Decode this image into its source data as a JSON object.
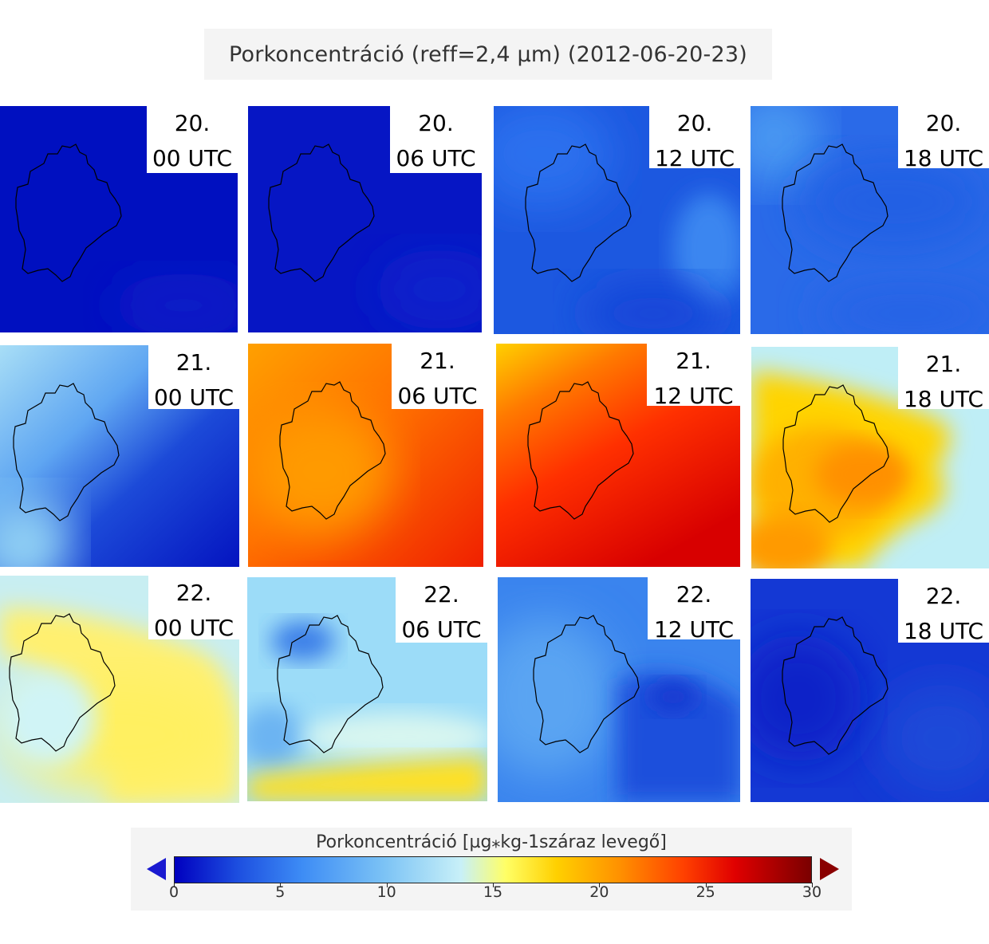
{
  "title": "Porkoncentráció (reff=2,4 µm) (2012-06-20-23)",
  "legend": {
    "title": "Porkoncentráció [µg⁎kg-1száraz levegő]",
    "ticks": [
      "0",
      "5",
      "10",
      "15",
      "20",
      "25",
      "30"
    ],
    "range": [
      0,
      30
    ],
    "extend": "both",
    "colors": {
      "min": "#0000bf",
      "low": "#3d8cf5",
      "mid": "#c8f0f8",
      "yellow": "#ffff66",
      "orange": "#ff9000",
      "red": "#e00000",
      "max": "#7a0000"
    }
  },
  "panels": [
    {
      "day": "20.",
      "time": "00 UTC",
      "colors": {
        "bg": "#0010c0"
      }
    },
    {
      "day": "20.",
      "time": "06 UTC",
      "colors": {
        "bg": "#0616c4"
      }
    },
    {
      "day": "20.",
      "time": "12 UTC",
      "colors": {
        "bg": "#1c58e0"
      }
    },
    {
      "day": "20.",
      "time": "18 UTC",
      "colors": {
        "bg": "#2a6ae8"
      }
    },
    {
      "day": "21.",
      "time": "00 UTC",
      "colors": {
        "bg": "#2f6ee6"
      }
    },
    {
      "day": "21.",
      "time": "06 UTC",
      "colors": {
        "bg": "#ff6a00"
      }
    },
    {
      "day": "21.",
      "time": "12 UTC",
      "colors": {
        "bg": "#ff2a00"
      }
    },
    {
      "day": "21.",
      "time": "18 UTC",
      "colors": {
        "bg": "#ffc020"
      }
    },
    {
      "day": "22.",
      "time": "00 UTC",
      "colors": {
        "bg": "#d0f0f0"
      }
    },
    {
      "day": "22.",
      "time": "06 UTC",
      "colors": {
        "bg": "#9cdcf8"
      }
    },
    {
      "day": "22.",
      "time": "12 UTC",
      "colors": {
        "bg": "#3a84ee"
      }
    },
    {
      "day": "22.",
      "time": "18 UTC",
      "colors": {
        "bg": "#1438d4"
      }
    }
  ]
}
